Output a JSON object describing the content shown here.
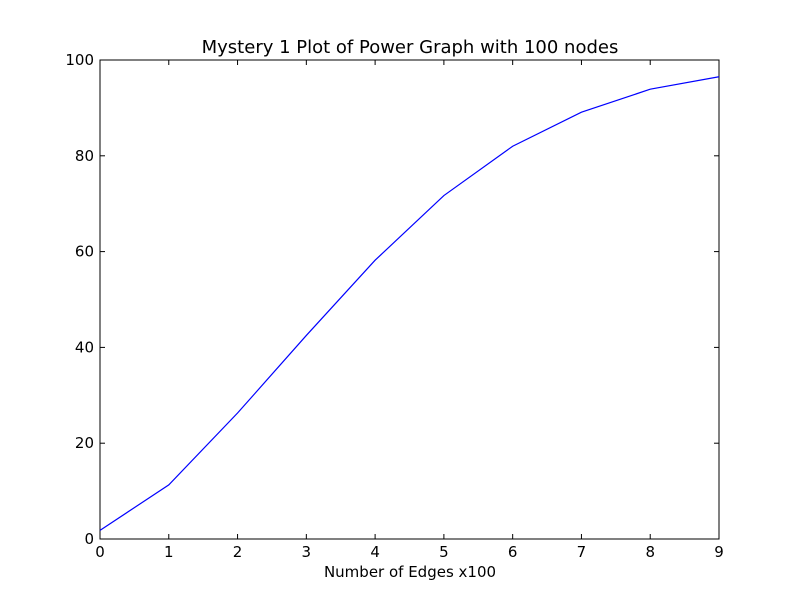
{
  "chart_data": {
    "type": "line",
    "title": "Mystery 1 Plot of Power Graph with 100 nodes",
    "xlabel": "Number of Edges x100",
    "ylabel": "",
    "xlim": [
      0,
      9
    ],
    "ylim": [
      0,
      100
    ],
    "x_ticks": [
      "0",
      "1",
      "2",
      "3",
      "4",
      "5",
      "6",
      "7",
      "8",
      "9"
    ],
    "y_ticks": [
      "0",
      "20",
      "40",
      "60",
      "80",
      "100"
    ],
    "grid": false,
    "series": [
      {
        "color": "#0000ff",
        "x": [
          0,
          1,
          2,
          3,
          4,
          5,
          6,
          7,
          8,
          9
        ],
        "y": [
          1.8,
          11.3,
          26.3,
          42.5,
          58.2,
          71.7,
          82.0,
          89.1,
          93.9,
          96.5
        ]
      }
    ]
  }
}
